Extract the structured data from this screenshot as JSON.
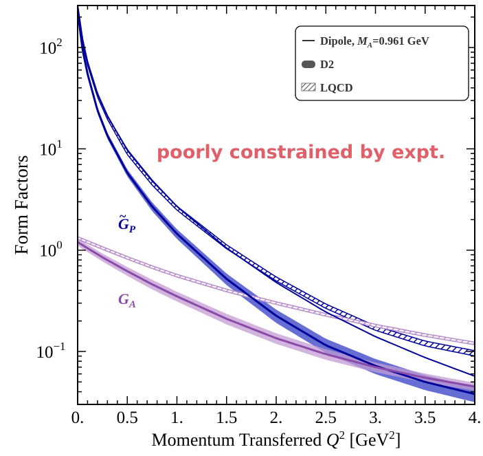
{
  "chart_data": {
    "type": "line",
    "title": "",
    "xlabel": "Momentum Transferred Q² [GeV²]",
    "xlabel_parts": {
      "main": "Momentum Transferred ",
      "q": "Q",
      "sup": "2",
      "unit_open": " [GeV",
      "unit_sup": "2",
      "unit_close": "]"
    },
    "ylabel": "Form Factors",
    "x_ticks": [
      "0.",
      "0.5",
      "1.",
      "1.5",
      "2.",
      "2.5",
      "3.",
      "3.5",
      "4."
    ],
    "xlim": [
      0,
      4
    ],
    "ylim": [
      0.03,
      260
    ],
    "yscale": "log",
    "y_ticks": [
      {
        "base": "10",
        "exp": "2",
        "value": 100
      },
      {
        "base": "10",
        "exp": "1",
        "value": 10
      },
      {
        "base": "10",
        "exp": "0",
        "value": 1
      },
      {
        "base": "10",
        "exp": "−1",
        "value": 0.1
      }
    ],
    "grid": false,
    "legend_position": "top-right",
    "legend": {
      "dipole_prefix": "Dipole, ",
      "dipole_ma": "M",
      "dipole_ma_sub": "A",
      "dipole_value": "=0.961 GeV",
      "d2": "D2",
      "lqcd": "LQCD"
    },
    "annotation": "poorly constrained by expt.",
    "series_labels": {
      "gp": {
        "base": "G",
        "tilde": "~",
        "sub": "P"
      },
      "ga": {
        "base": "G",
        "sub": "A"
      }
    },
    "series": [
      {
        "id": "gp",
        "color": "#00009a",
        "band_color": "#4b55cc",
        "x": [
          0.0,
          0.05,
          0.1,
          0.2,
          0.3,
          0.5,
          0.75,
          1.0,
          1.5,
          2.0,
          2.5,
          3.0,
          3.5,
          4.0
        ],
        "dipole": [
          260,
          120,
          72,
          35,
          21,
          9.8,
          4.9,
          2.7,
          1.05,
          0.48,
          0.245,
          0.14,
          0.087,
          0.057
        ],
        "d2": [
          230,
          95,
          55,
          24,
          13.5,
          5.8,
          2.7,
          1.45,
          0.52,
          0.225,
          0.115,
          0.072,
          0.05,
          0.038
        ],
        "d2_err": [
          0.06,
          0.06,
          0.06,
          0.07,
          0.07,
          0.08,
          0.1,
          0.11,
          0.13,
          0.15,
          0.16,
          0.17,
          0.17,
          0.17
        ],
        "lqcd_mid": [
          255,
          115,
          70,
          34,
          20.5,
          9.2,
          4.6,
          2.6,
          1.08,
          0.52,
          0.28,
          0.17,
          0.12,
          0.096
        ],
        "lqcd_err": [
          0.045,
          0.045,
          0.045,
          0.045,
          0.045,
          0.045,
          0.045,
          0.045,
          0.045,
          0.045,
          0.05,
          0.05,
          0.055,
          0.06
        ]
      },
      {
        "id": "ga",
        "color": "#8a4aa8",
        "band_color": "#c39bd4",
        "x": [
          0.0,
          0.25,
          0.5,
          0.75,
          1.0,
          1.5,
          2.0,
          2.5,
          3.0,
          3.5,
          4.0
        ],
        "d2": [
          1.2,
          0.85,
          0.62,
          0.46,
          0.35,
          0.21,
          0.135,
          0.094,
          0.07,
          0.055,
          0.045
        ],
        "d2_err": [
          0.08,
          0.09,
          0.1,
          0.11,
          0.11,
          0.12,
          0.12,
          0.12,
          0.11,
          0.1,
          0.09
        ],
        "lqcd_mid": [
          1.32,
          1.05,
          0.84,
          0.68,
          0.56,
          0.4,
          0.3,
          0.23,
          0.18,
          0.145,
          0.12
        ],
        "lqcd_err": [
          0.03,
          0.03,
          0.03,
          0.03,
          0.03,
          0.03,
          0.03,
          0.03,
          0.03,
          0.03,
          0.03
        ]
      }
    ]
  }
}
